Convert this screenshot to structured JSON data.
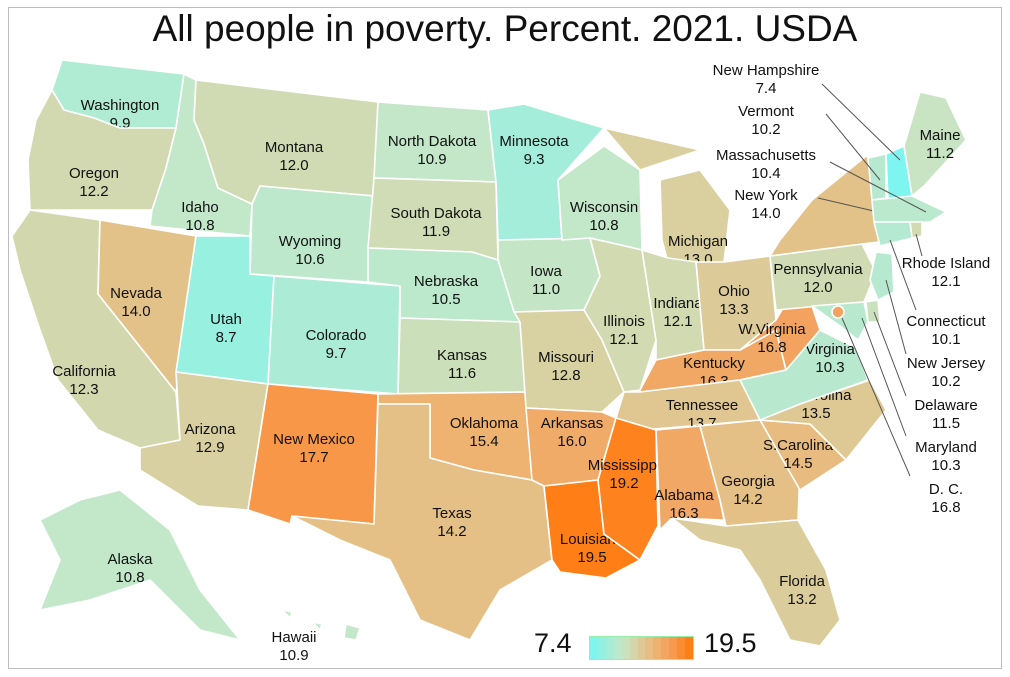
{
  "title": "All people in poverty. Percent. 2021. USDA",
  "legend": {
    "min_label": "7.4",
    "max_label": "19.5",
    "low_color": "#7ff5f0",
    "high_color": "#ff7f16"
  },
  "states": [
    {
      "id": "WA",
      "name": "Washington",
      "value": "9.9"
    },
    {
      "id": "OR",
      "name": "Oregon",
      "value": "12.2"
    },
    {
      "id": "CA",
      "name": "California",
      "value": "12.3"
    },
    {
      "id": "ID",
      "name": "Idaho",
      "value": "10.8"
    },
    {
      "id": "NV",
      "name": "Nevada",
      "value": "14.0"
    },
    {
      "id": "MT",
      "name": "Montana",
      "value": "12.0"
    },
    {
      "id": "WY",
      "name": "Wyoming",
      "value": "10.6"
    },
    {
      "id": "UT",
      "name": "Utah",
      "value": "8.7"
    },
    {
      "id": "AZ",
      "name": "Arizona",
      "value": "12.9"
    },
    {
      "id": "CO",
      "name": "Colorado",
      "value": "9.7"
    },
    {
      "id": "NM",
      "name": "New Mexico",
      "value": "17.7"
    },
    {
      "id": "ND",
      "name": "North Dakota",
      "value": "10.9"
    },
    {
      "id": "SD",
      "name": "South Dakota",
      "value": "11.9"
    },
    {
      "id": "NE",
      "name": "Nebraska",
      "value": "10.5"
    },
    {
      "id": "KS",
      "name": "Kansas",
      "value": "11.6"
    },
    {
      "id": "OK",
      "name": "Oklahoma",
      "value": "15.4"
    },
    {
      "id": "TX",
      "name": "Texas",
      "value": "14.2"
    },
    {
      "id": "MN",
      "name": "Minnesota",
      "value": "9.3"
    },
    {
      "id": "IA",
      "name": "Iowa",
      "value": "11.0"
    },
    {
      "id": "MO",
      "name": "Missouri",
      "value": "12.8"
    },
    {
      "id": "AR",
      "name": "Arkansas",
      "value": "16.0"
    },
    {
      "id": "LA",
      "name": "Louisiana",
      "value": "19.5"
    },
    {
      "id": "WI",
      "name": "Wisconsin",
      "value": "10.8"
    },
    {
      "id": "IL",
      "name": "Illinois",
      "value": "12.1"
    },
    {
      "id": "MI",
      "name": "Michigan",
      "value": "13.0"
    },
    {
      "id": "IN",
      "name": "Indiana",
      "value": "12.1"
    },
    {
      "id": "OH",
      "name": "Ohio",
      "value": "13.3"
    },
    {
      "id": "KY",
      "name": "Kentucky",
      "value": "16.3"
    },
    {
      "id": "TN",
      "name": "Tennessee",
      "value": "13.7"
    },
    {
      "id": "MS",
      "name": "Mississippi",
      "value": "19.2"
    },
    {
      "id": "AL",
      "name": "Alabama",
      "value": "16.3"
    },
    {
      "id": "GA",
      "name": "Georgia",
      "value": "14.2"
    },
    {
      "id": "FL",
      "name": "Florida",
      "value": "13.2"
    },
    {
      "id": "SC",
      "name": "S.Carolina",
      "value": "14.5"
    },
    {
      "id": "NC",
      "name": "N.Carolina",
      "value": "13.5"
    },
    {
      "id": "VA",
      "name": "Virginia",
      "value": "10.3"
    },
    {
      "id": "WV",
      "name": "W.Virginia",
      "value": "16.8"
    },
    {
      "id": "PA",
      "name": "Pennsylvania",
      "value": "12.0"
    },
    {
      "id": "NY",
      "name": "New York",
      "value": "14.0"
    },
    {
      "id": "VT",
      "name": "Vermont",
      "value": "10.2"
    },
    {
      "id": "NH",
      "name": "New Hampshire",
      "value": "7.4"
    },
    {
      "id": "ME",
      "name": "Maine",
      "value": "11.2"
    },
    {
      "id": "MA",
      "name": "Massachusetts",
      "value": "10.4"
    },
    {
      "id": "RI",
      "name": "Rhode Island",
      "value": "12.1"
    },
    {
      "id": "CT",
      "name": "Connecticut",
      "value": "10.1"
    },
    {
      "id": "NJ",
      "name": "New Jersey",
      "value": "10.2"
    },
    {
      "id": "DE",
      "name": "Delaware",
      "value": "11.5"
    },
    {
      "id": "MD",
      "name": "Maryland",
      "value": "10.3"
    },
    {
      "id": "DC",
      "name": "D. C.",
      "value": "16.8"
    },
    {
      "id": "AK",
      "name": "Alaska",
      "value": "10.8"
    },
    {
      "id": "HI",
      "name": "Hawaii",
      "value": "10.9"
    }
  ]
}
